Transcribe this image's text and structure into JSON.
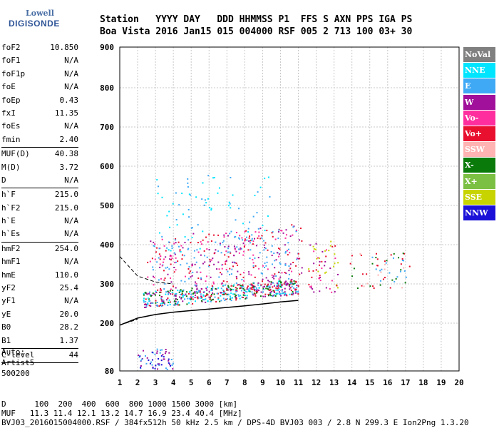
{
  "logo": {
    "line1": "Lowell",
    "line2": "DIGISONDE"
  },
  "header": {
    "row1": "Station   YYYY DAY   DDD HHMMSS P1  FFS S AXN PPS IGA PS",
    "row2": "Boa Vista 2016 Jan15 015 004000 RSF 005 2 713 100 03+ 30"
  },
  "params": [
    {
      "k": "foF2",
      "v": "10.850"
    },
    {
      "k": "foF1",
      "v": "N/A"
    },
    {
      "k": "foF1p",
      "v": "N/A"
    },
    {
      "k": "foE",
      "v": "N/A"
    },
    {
      "k": "foEp",
      "v": "0.43"
    },
    {
      "k": "fxI",
      "v": "11.35"
    },
    {
      "k": "foEs",
      "v": "N/A"
    },
    {
      "k": "fmin",
      "v": "2.40"
    },
    {
      "sep": true
    },
    {
      "k": "MUF(D)",
      "v": "40.38"
    },
    {
      "k": "M(D)",
      "v": "3.72"
    },
    {
      "k": "D",
      "v": "N/A"
    },
    {
      "sep": true
    },
    {
      "k": "h`F",
      "v": "215.0"
    },
    {
      "k": "h`F2",
      "v": "215.0"
    },
    {
      "k": "h`E",
      "v": "N/A"
    },
    {
      "k": "h`Es",
      "v": "N/A"
    },
    {
      "sep": true
    },
    {
      "k": "hmF2",
      "v": "254.0"
    },
    {
      "k": "hmF1",
      "v": "N/A"
    },
    {
      "k": "hmE",
      "v": "110.0"
    },
    {
      "k": "yF2",
      "v": "25.4"
    },
    {
      "k": "yF1",
      "v": "N/A"
    },
    {
      "k": "yE",
      "v": "20.0"
    },
    {
      "k": "B0",
      "v": "28.2"
    },
    {
      "k": "B1",
      "v": "1.37"
    },
    {
      "sep": true
    },
    {
      "k": "C-level",
      "v": "44"
    },
    {
      "sep": true
    }
  ],
  "auto": {
    "l1": "Auto:",
    "l2": "Artist5",
    "l3": "500200"
  },
  "legend": [
    {
      "label": "NoVal",
      "color": "#808080"
    },
    {
      "label": "NNE",
      "color": "#00e5ff"
    },
    {
      "label": "E",
      "color": "#3fa9f5"
    },
    {
      "label": "W",
      "color": "#a0109a"
    },
    {
      "label": "Vo-",
      "color": "#ff2e9e"
    },
    {
      "label": "Vo+",
      "color": "#e8102e"
    },
    {
      "label": "SSW",
      "color": "#ffb3b3"
    },
    {
      "label": "X-",
      "color": "#0a7a0a"
    },
    {
      "label": "X+",
      "color": "#7cc043"
    },
    {
      "label": "SSE",
      "color": "#c8d400"
    },
    {
      "label": "NNW",
      "color": "#1a10d8"
    }
  ],
  "bottom": {
    "row1": "D      100  200  400  600  800 1000 1500 3000 [km]",
    "row2": "MUF   11.3 11.4 12.1 13.2 14.7 16.9 23.4 40.4 [MHz]",
    "row3": "BVJ03_2016015004000.RSF / 384fx512h 50 kHz 2.5 km / DPS-4D BVJ03 003 / 2.8 N 299.3 E Ion2Png 1.3.20"
  },
  "chart_data": {
    "type": "scatter",
    "title": "",
    "xlabel": "",
    "ylabel": "",
    "xlim": [
      1,
      20
    ],
    "ylim": [
      80,
      900
    ],
    "xticks": [
      1,
      2,
      3,
      4,
      5,
      6,
      7,
      8,
      9,
      10,
      11,
      12,
      13,
      14,
      15,
      16,
      17,
      18,
      19,
      20
    ],
    "yticks": [
      80,
      200,
      300,
      400,
      500,
      600,
      700,
      800,
      900
    ],
    "grid": true,
    "clusters": [
      {
        "x": [
          2.3,
          11.0
        ],
        "y": [
          240,
          280
        ],
        "colors": [
          "#e8102e",
          "#00e5ff",
          "#3fa9f5",
          "#a0109a",
          "#0a7a0a"
        ]
      },
      {
        "x": [
          2.5,
          11.2
        ],
        "y": [
          280,
          420
        ],
        "colors": [
          "#a0109a",
          "#e8102e",
          "#ff2e9e",
          "#3fa9f5"
        ]
      },
      {
        "x": [
          3.0,
          9.5
        ],
        "y": [
          380,
          580
        ],
        "colors": [
          "#00e5ff",
          "#3fa9f5"
        ]
      },
      {
        "x": [
          2.0,
          4.0
        ],
        "y": [
          85,
          140
        ],
        "colors": [
          "#a0109a",
          "#1a10d8",
          "#3fa9f5"
        ]
      },
      {
        "x": [
          11.5,
          13.2
        ],
        "y": [
          280,
          410
        ],
        "colors": [
          "#a0109a",
          "#e8102e",
          "#c8d400",
          "#ff2e9e"
        ]
      },
      {
        "x": [
          13.8,
          17.2
        ],
        "y": [
          290,
          380
        ],
        "colors": [
          "#ffb3b3",
          "#e8102e",
          "#3fa9f5",
          "#0a7a0a"
        ]
      }
    ],
    "trace": [
      [
        1.0,
        195
      ],
      [
        2.0,
        213
      ],
      [
        3.0,
        222
      ],
      [
        4.0,
        228
      ],
      [
        5.0,
        232
      ],
      [
        6.0,
        236
      ],
      [
        7.0,
        240
      ],
      [
        8.0,
        244
      ],
      [
        9.0,
        249
      ],
      [
        10.0,
        254
      ],
      [
        11.0,
        258
      ]
    ],
    "dashed_upper": [
      [
        1.0,
        370
      ],
      [
        2.0,
        320
      ],
      [
        3.0,
        305
      ],
      [
        4.0,
        300
      ]
    ],
    "dashed_lower": [
      [
        1.0,
        195
      ],
      [
        2.0,
        210
      ]
    ]
  }
}
